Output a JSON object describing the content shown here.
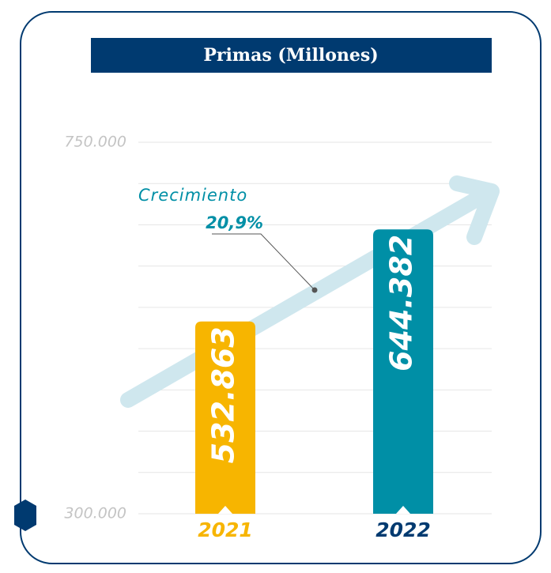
{
  "chart_data": {
    "type": "bar",
    "title": "Primas (Millones)",
    "categories": [
      "2021",
      "2022"
    ],
    "values": [
      532863,
      644382
    ],
    "value_labels": [
      "532.863",
      "644.382"
    ],
    "colors": [
      "#f7b500",
      "#008fa6"
    ],
    "category_label_colors": [
      "#f7b500",
      "#003a70"
    ],
    "ylim": [
      300000,
      750000
    ],
    "yticks": [
      {
        "value": 300000,
        "label": "300.000"
      },
      {
        "value": 350000,
        "label": null
      },
      {
        "value": 400000,
        "label": null
      },
      {
        "value": 450000,
        "label": null
      },
      {
        "value": 500000,
        "label": null
      },
      {
        "value": 550000,
        "label": null
      },
      {
        "value": 600000,
        "label": null
      },
      {
        "value": 650000,
        "label": null
      },
      {
        "value": 700000,
        "label": null
      },
      {
        "value": 750000,
        "label": "750.000"
      }
    ],
    "grid": true,
    "annotations": [
      "Crecimiento",
      "20,9%"
    ]
  }
}
